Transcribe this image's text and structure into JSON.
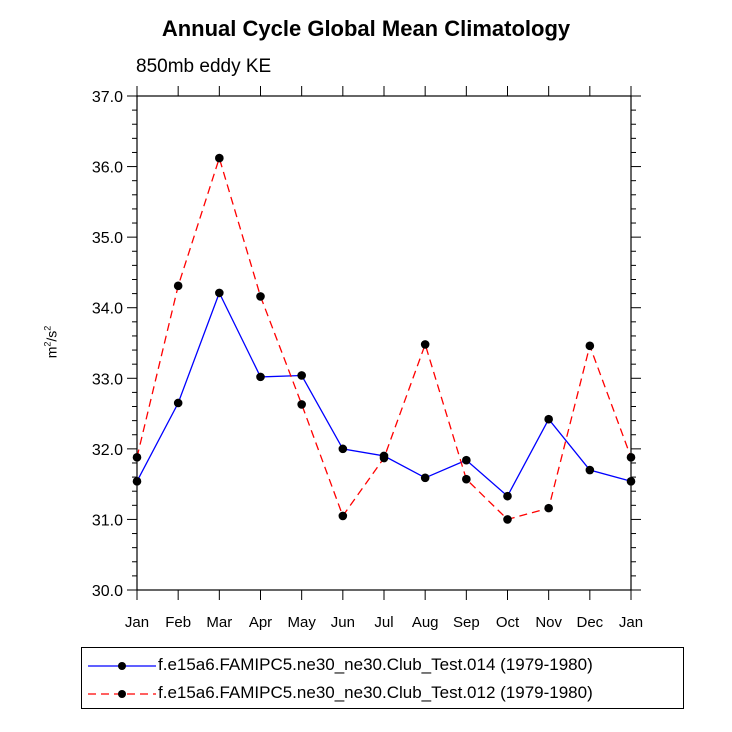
{
  "chart_data": {
    "type": "line",
    "title": "Annual Cycle Global Mean Climatology",
    "subtitle": "850mb eddy KE",
    "ylabel": "m2/s2",
    "ylabel_parts": {
      "base1": "m",
      "exp1": "2",
      "sep": "/s",
      "exp2": "2"
    },
    "xlabel": "",
    "categories": [
      "Jan",
      "Feb",
      "Mar",
      "Apr",
      "May",
      "Jun",
      "Jul",
      "Aug",
      "Sep",
      "Oct",
      "Nov",
      "Dec",
      "Jan"
    ],
    "ylim": [
      30.0,
      37.0
    ],
    "yticks": [
      "30.0",
      "31.0",
      "32.0",
      "33.0",
      "34.0",
      "35.0",
      "36.0",
      "37.0"
    ],
    "series": [
      {
        "name": "f.e15a6.FAMIPC5.ne30_ne30.Club_Test.014 (1979-1980)",
        "color": "#0000ff",
        "dash": "solid",
        "values": [
          31.54,
          32.65,
          34.21,
          33.02,
          33.04,
          32.0,
          31.9,
          31.59,
          31.84,
          31.33,
          32.42,
          31.7,
          31.54
        ]
      },
      {
        "name": "f.e15a6.FAMIPC5.ne30_ne30.Club_Test.012 (1979-1980)",
        "color": "#ff0000",
        "dash": "dashed",
        "values": [
          31.88,
          34.31,
          36.12,
          34.16,
          32.63,
          31.05,
          31.87,
          33.48,
          31.57,
          31.0,
          31.16,
          33.46,
          31.88
        ]
      }
    ],
    "legend_position": "bottom",
    "marker_color": "#000000"
  }
}
